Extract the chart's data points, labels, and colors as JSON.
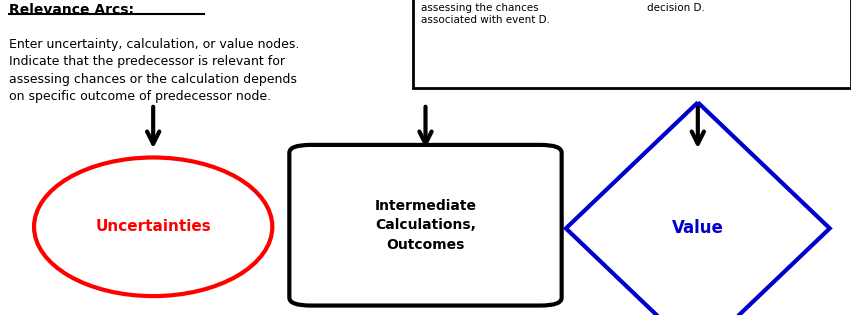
{
  "bg_color": "#ffffff",
  "title_text": "Relevance Arcs:",
  "body_text": "Enter uncertainty, calculation, or value nodes.\nIndicate that the predecessor is relevant for\nassessing chances or the calculation depends\non specific outcome of predecessor node.",
  "top_box_text1": "assessing the chances\nassociated with event D.",
  "top_box_text2": "decision D.",
  "node1_label": "Uncertainties",
  "node1_color": "#ff0000",
  "node2_label": "Intermediate\nCalculations,\nOutcomes",
  "node2_color": "#000000",
  "node3_label": "Value",
  "node3_color": "#0000cc",
  "arrow_color": "#000000"
}
